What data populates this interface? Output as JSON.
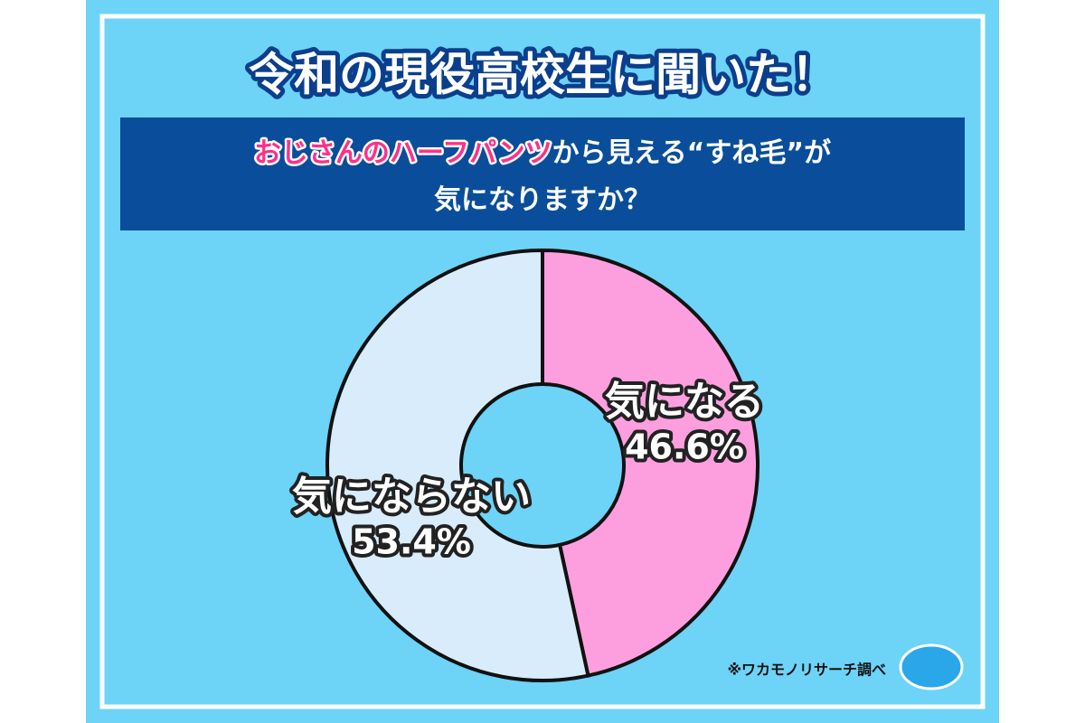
{
  "chart_data": {
    "type": "pie",
    "title": "令和の現役高校生に聞いた！",
    "subtitle": [
      [
        "おじさんのハーフパンツ",
        "から見える“すね毛”が"
      ],
      [
        "気になりますか？"
      ]
    ],
    "categories": [
      "気になる",
      "気にならない"
    ],
    "values": [
      46.6,
      53.4
    ],
    "value_labels": [
      "46.6%",
      "53.4%"
    ],
    "colors": [
      "#fd9fdf",
      "#d8ecfc"
    ],
    "donut": true,
    "source": "※ワカモノリサーチ調べ"
  }
}
